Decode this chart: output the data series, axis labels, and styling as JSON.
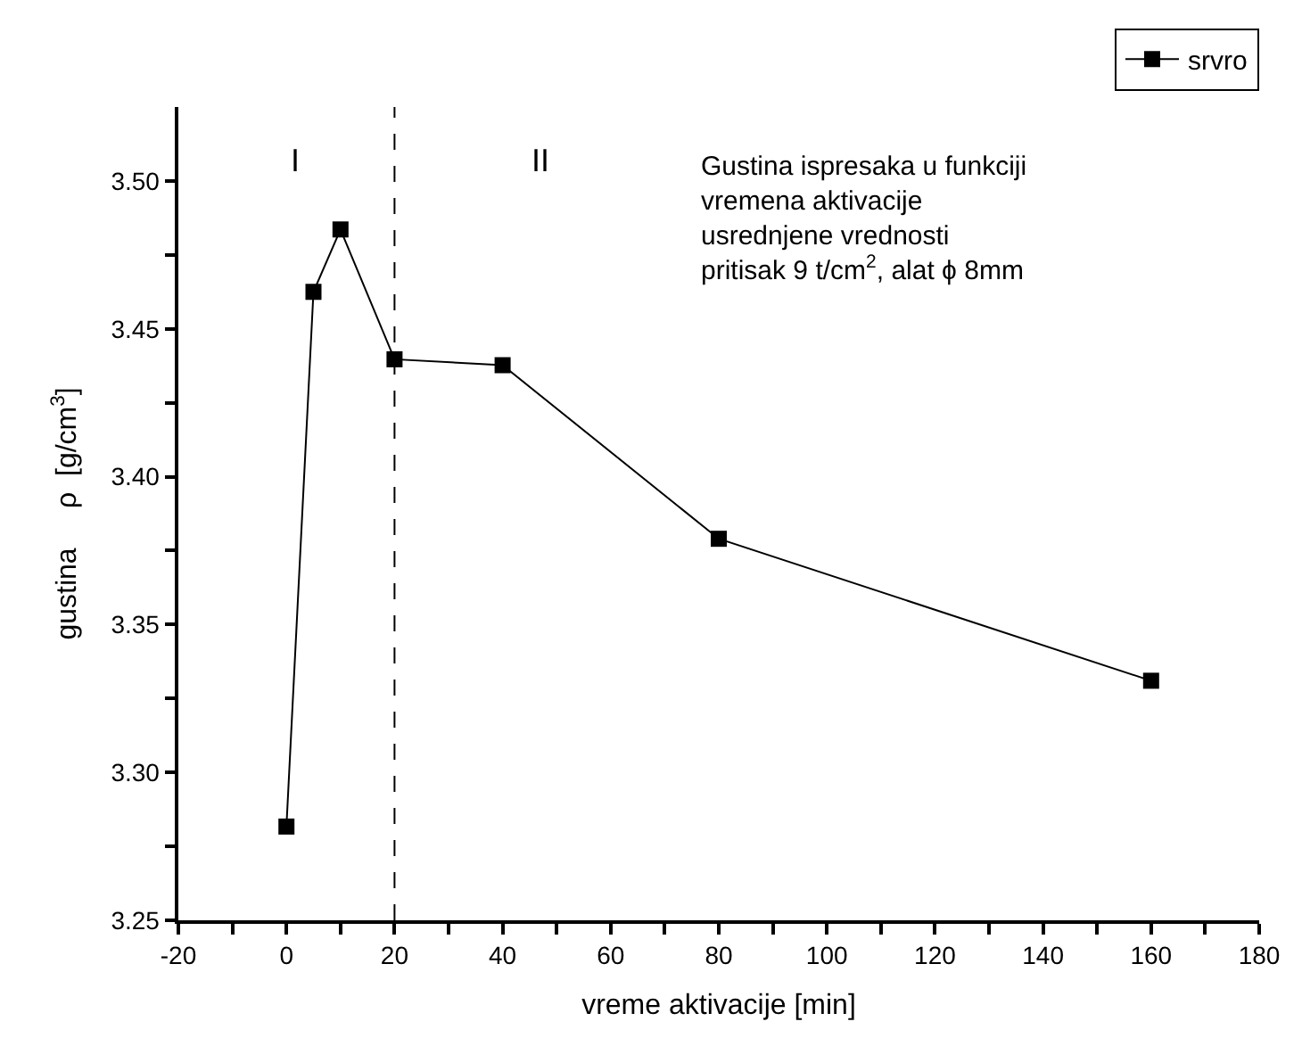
{
  "chart_data": {
    "type": "line",
    "xlabel": "vreme aktivacije [min]",
    "ylabel": "gustina     ρ  [g/cm$^{3}$]",
    "x": [
      0,
      5,
      10,
      20,
      40,
      80,
      160
    ],
    "series": [
      {
        "name": "srvro",
        "color": "#000000",
        "values": [
          3.2817,
          3.4625,
          3.4836,
          3.4397,
          3.4377,
          3.379,
          3.331
        ]
      }
    ],
    "marker": "square",
    "line_style": "solid",
    "legend": "top right",
    "xlim": [
      -20,
      180
    ],
    "xticks": [
      -20,
      {
        "value": -10,
        "label": null
      },
      0,
      {
        "value": 10,
        "label": null
      },
      20,
      {
        "value": 30,
        "label": null
      },
      40,
      {
        "value": 50,
        "label": null
      },
      60,
      {
        "value": 70,
        "label": null
      },
      80,
      {
        "value": 90,
        "label": null
      },
      100,
      {
        "value": 110,
        "label": null
      },
      120,
      {
        "value": 130,
        "label": null
      },
      140,
      {
        "value": 150,
        "label": null
      },
      160,
      {
        "value": 170,
        "label": null
      },
      180
    ],
    "ylim": [
      3.25,
      3.525
    ],
    "yticks": [
      {
        "value": 3.25,
        "label": "3.25"
      },
      {
        "value": 3.275,
        "label": null
      },
      {
        "value": 3.3,
        "label": "3.30"
      },
      {
        "value": 3.325,
        "label": null
      },
      {
        "value": 3.35,
        "label": "3.35"
      },
      {
        "value": 3.375,
        "label": null
      },
      {
        "value": 3.4,
        "label": "3.40"
      },
      {
        "value": 3.425,
        "label": null
      },
      {
        "value": 3.45,
        "label": "3.45"
      },
      {
        "value": 3.475,
        "label": null
      },
      {
        "value": 3.5,
        "label": "3.50"
      }
    ],
    "ref_lines": [
      {
        "axis": "x",
        "value": 20,
        "line_style": "dashed",
        "color": "#000000"
      }
    ],
    "annotations": [
      "I",
      "II",
      "Gustina ispresaka u funkciji\nvremena aktivacije\nusrednjene vrednosti\npritisak 9 t/cm$^{2}$, alat ϕ 8mm"
    ]
  }
}
